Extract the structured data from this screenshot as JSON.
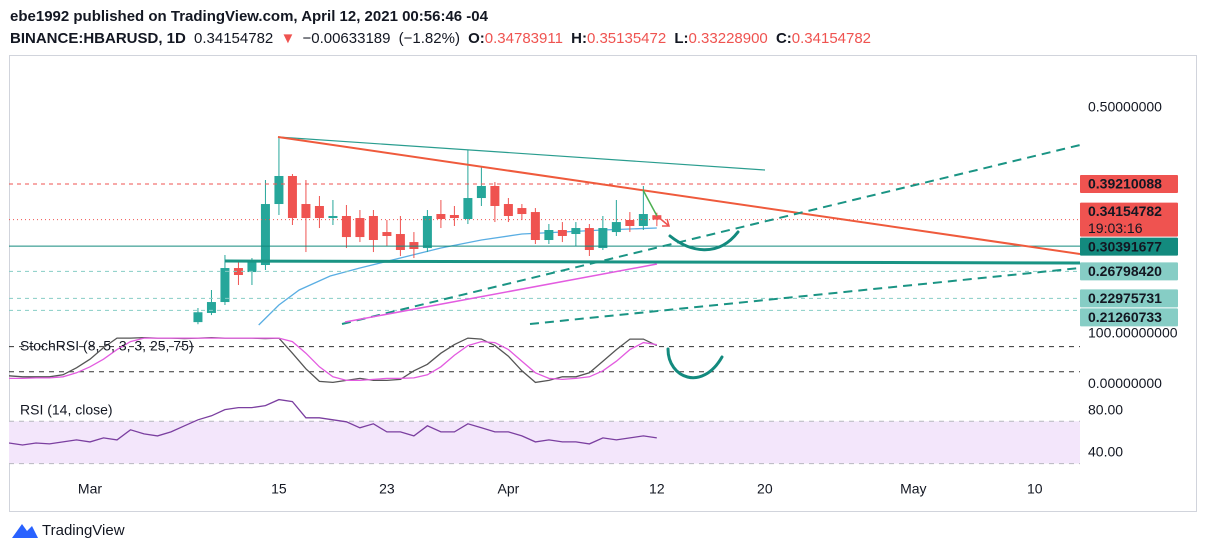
{
  "header": {
    "publisher": "ebe1992 published on TradingView.com, April 12, 2021 00:56:46 -04",
    "symbol": "BINANCE:HBARUSD, 1D",
    "arrow": "▼",
    "change": "−0.00633189",
    "change_pct": "(−1.82%)",
    "o": "O:",
    "h": "H:",
    "l": "L:",
    "c": "C:"
  },
  "footer": {
    "brand": "TradingView"
  },
  "chart_data": [
    {
      "type": "candlestick",
      "x": [
        8,
        9,
        10,
        11,
        12,
        13,
        14,
        15,
        16,
        17,
        18,
        19,
        20,
        21,
        22,
        23,
        24,
        25,
        26,
        27,
        28,
        29,
        30,
        31,
        32,
        33,
        34,
        35,
        36,
        37,
        38,
        39,
        40,
        41,
        42
      ],
      "open": [
        0.196,
        0.209,
        0.2245,
        0.2728,
        0.2671,
        0.2771,
        0.3637,
        0.4035,
        0.3637,
        0.3609,
        0.3438,
        0.3467,
        0.3438,
        0.3467,
        0.3239,
        0.3211,
        0.3097,
        0.3012,
        0.3495,
        0.3481,
        0.3424,
        0.3722,
        0.3893,
        0.3637,
        0.358,
        0.3523,
        0.3126,
        0.3268,
        0.3211,
        0.3296,
        0.3012,
        0.3239,
        0.341,
        0.3325,
        0.34783911
      ],
      "high": [
        0.216,
        0.2416,
        0.2913,
        0.2813,
        0.287,
        0.3978,
        0.4574,
        0.4063,
        0.3978,
        0.3751,
        0.3694,
        0.3623,
        0.3552,
        0.3552,
        0.341,
        0.3467,
        0.3239,
        0.3552,
        0.3694,
        0.3609,
        0.4404,
        0.4177,
        0.3949,
        0.3722,
        0.3637,
        0.358,
        0.3353,
        0.3381,
        0.3381,
        0.3353,
        0.3467,
        0.3694,
        0.3523,
        0.3893,
        0.35135472
      ],
      "low": [
        0.193,
        0.206,
        0.2203,
        0.2487,
        0.2487,
        0.27,
        0.3481,
        0.3339,
        0.2955,
        0.3296,
        0.3339,
        0.3012,
        0.3097,
        0.2955,
        0.3041,
        0.2899,
        0.287,
        0.2955,
        0.3296,
        0.3325,
        0.3353,
        0.3609,
        0.3381,
        0.3381,
        0.341,
        0.3069,
        0.3069,
        0.3097,
        0.3041,
        0.2899,
        0.2984,
        0.3183,
        0.3239,
        0.3268,
        0.332289
      ],
      "close": [
        0.21,
        0.2245,
        0.2728,
        0.2629,
        0.2813,
        0.3637,
        0.4035,
        0.3438,
        0.3438,
        0.3438,
        0.3467,
        0.3168,
        0.3168,
        0.3126,
        0.3183,
        0.2984,
        0.2998,
        0.3467,
        0.3424,
        0.3438,
        0.3722,
        0.3893,
        0.3609,
        0.3467,
        0.3495,
        0.3126,
        0.3268,
        0.3183,
        0.3296,
        0.2984,
        0.3296,
        0.3381,
        0.3325,
        0.3495,
        0.34154782
      ],
      "last_labels": {
        "open": "0.34783911",
        "high": "0.35135472",
        "low": "0.33228900",
        "close": "0.34154782"
      },
      "up_color": "#26a69a",
      "down_color": "#ef5350",
      "series": [
        {
          "color": "#5aaee3",
          "x": [
            12.5,
            14,
            15.5,
            17.8,
            20,
            23,
            26,
            29,
            32,
            35,
            38,
            42
          ],
          "values": [
            0.1919,
            0.2203,
            0.2416,
            0.2615,
            0.2728,
            0.287,
            0.3012,
            0.3126,
            0.3211,
            0.324,
            0.3268,
            0.3296
          ]
        }
      ],
      "ylim": [
        0.1848,
        0.5739
      ],
      "yticks": [
        {
          "value": 0.5,
          "label": "0.50000000"
        }
      ],
      "grid": false,
      "hlines": [
        {
          "value": 0.39210088,
          "color": "#ef5350",
          "text_color": "#ffffff",
          "style": "dashed"
        },
        {
          "value": 0.30391677,
          "color": "#138a7e",
          "text_color": "#ffffff",
          "style": "solid"
        },
        {
          "value": 0.2679842,
          "label": "0.26798420",
          "color": "#86cdc5",
          "text_color": "#131722",
          "style": "dashed"
        },
        {
          "value": 0.22975731,
          "color": "#86cdc5",
          "text_color": "#131722",
          "style": "dashed"
        },
        {
          "value": 0.21260733,
          "color": "#86cdc5",
          "text_color": "#131722",
          "style": "dashed"
        }
      ],
      "countdown": "19:03:16"
    },
    {
      "type": "line",
      "title": "StochRSI (8, 5, 3, 3, 25, 75)",
      "x": [
        -6,
        -5,
        -4,
        -3,
        -2,
        -1,
        0,
        1,
        2,
        3,
        4,
        5,
        6,
        7,
        8,
        9,
        10,
        11,
        12,
        13,
        14,
        15,
        16,
        17,
        18,
        19,
        20,
        21,
        22,
        23,
        24,
        25,
        26,
        27,
        28,
        29,
        30,
        31,
        32,
        33,
        34,
        35,
        36,
        37,
        38,
        39,
        40,
        41,
        42
      ],
      "series": [
        {
          "color": "#555555",
          "values": [
            17,
            15,
            15,
            15,
            19,
            33,
            50,
            73,
            92,
            92,
            93,
            92,
            92,
            91,
            92,
            93,
            92,
            92,
            92,
            91,
            92,
            62,
            31,
            6,
            4,
            8,
            12,
            8,
            8,
            10,
            27,
            40,
            62,
            79,
            92,
            90,
            77,
            56,
            27,
            4,
            8,
            15,
            15,
            23,
            46,
            69,
            90,
            90,
            77
          ]
        },
        {
          "color": "#e35ce0",
          "values": [
            12,
            12,
            13,
            13,
            15,
            23,
            35,
            50,
            69,
            85,
            92,
            92,
            92,
            92,
            92,
            92,
            92,
            92,
            92,
            92,
            92,
            85,
            62,
            35,
            15,
            8,
            8,
            10,
            12,
            12,
            13,
            19,
            35,
            58,
            77,
            85,
            83,
            69,
            46,
            23,
            12,
            10,
            12,
            15,
            27,
            46,
            69,
            83,
            79
          ]
        }
      ],
      "ylim": [
        -25,
        108
      ],
      "yticks": [
        {
          "value": 100,
          "label": "100.00000000"
        },
        {
          "value": 0,
          "label": "0.00000000"
        }
      ],
      "bands": [
        75,
        25
      ]
    },
    {
      "type": "line",
      "title": "RSI (14, close)",
      "x": [
        -6,
        -5,
        -4,
        -3,
        -2,
        -1,
        0,
        1,
        2,
        3,
        4,
        5,
        6,
        7,
        8,
        9,
        10,
        11,
        12,
        13,
        14,
        15,
        16,
        17,
        18,
        19,
        20,
        21,
        22,
        23,
        24,
        25,
        26,
        27,
        28,
        29,
        30,
        31,
        32,
        33,
        34,
        35,
        36,
        37,
        38,
        39,
        40,
        41,
        42
      ],
      "series": [
        {
          "color": "#7b3fa0",
          "values": [
            49.5,
            47.6,
            49.5,
            48.6,
            50.5,
            52.4,
            50.5,
            54.3,
            52.4,
            61.9,
            58.1,
            56.2,
            60,
            65.7,
            71.4,
            75.2,
            81,
            82.9,
            82.9,
            84.8,
            90.5,
            88.6,
            73.3,
            73.3,
            71.4,
            69.5,
            63.8,
            67.6,
            60,
            60,
            56.2,
            65.7,
            60,
            60,
            67.6,
            63.8,
            60,
            60,
            56.2,
            50.5,
            52.4,
            50.5,
            50.5,
            48.6,
            54.3,
            52.4,
            54.3,
            56.2,
            54.3
          ]
        }
      ],
      "ylim": [
        23,
        92
      ],
      "yticks": [
        {
          "value": 80,
          "label": "80.00"
        },
        {
          "value": 40,
          "label": "40.00"
        }
      ],
      "bands": [
        70,
        30
      ],
      "band_color": "#f3e6fb",
      "xlim": [
        -6,
        73.5
      ],
      "xticks": [
        {
          "value": 0,
          "label": "Mar"
        },
        {
          "value": 14,
          "label": "15"
        },
        {
          "value": 22,
          "label": "23"
        },
        {
          "value": 31,
          "label": "Apr"
        },
        {
          "value": 42,
          "label": "12"
        },
        {
          "value": 50,
          "label": "20"
        },
        {
          "value": 61,
          "label": "May"
        },
        {
          "value": 70,
          "label": "10"
        }
      ]
    }
  ]
}
